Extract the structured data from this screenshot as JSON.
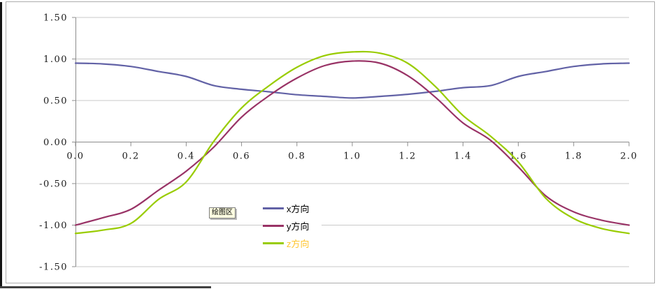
{
  "chart_data": {
    "type": "line",
    "title": "",
    "xlabel": "",
    "ylabel": "",
    "xlim": [
      0.0,
      2.0
    ],
    "ylim": [
      -1.5,
      1.5
    ],
    "grid": true,
    "legend_position": "center",
    "x_ticks": [
      "0.0",
      "0.2",
      "0.4",
      "0.6",
      "0.8",
      "1.0",
      "1.2",
      "1.4",
      "1.6",
      "1.8",
      "2.0"
    ],
    "y_ticks": [
      "1.50",
      "1.00",
      "0.50",
      "0.00",
      "-0.50",
      "-1.00",
      "-1.50"
    ],
    "x": [
      0.0,
      0.1,
      0.2,
      0.3,
      0.4,
      0.5,
      0.6,
      0.7,
      0.8,
      0.9,
      1.0,
      1.1,
      1.2,
      1.3,
      1.4,
      1.5,
      1.6,
      1.7,
      1.8,
      1.9,
      2.0
    ],
    "series": [
      {
        "name": "x方向",
        "color": "#6262A6",
        "label_color": "#000000",
        "values": [
          0.95,
          0.94,
          0.91,
          0.85,
          0.79,
          0.68,
          0.635,
          0.605,
          0.57,
          0.55,
          0.53,
          0.55,
          0.575,
          0.61,
          0.655,
          0.68,
          0.79,
          0.85,
          0.91,
          0.94,
          0.95
        ]
      },
      {
        "name": "y方向",
        "color": "#993366",
        "label_color": "#000000",
        "values": [
          -1.0,
          -0.91,
          -0.81,
          -0.58,
          -0.35,
          -0.06,
          0.3,
          0.56,
          0.77,
          0.92,
          0.975,
          0.95,
          0.8,
          0.54,
          0.23,
          0.02,
          -0.3,
          -0.65,
          -0.84,
          -0.94,
          -1.0
        ]
      },
      {
        "name": "z方向",
        "color": "#99CC00",
        "label_color": "#FFC52E",
        "values": [
          -1.1,
          -1.06,
          -0.98,
          -0.69,
          -0.48,
          0.01,
          0.41,
          0.68,
          0.9,
          1.04,
          1.085,
          1.07,
          0.95,
          0.67,
          0.32,
          0.07,
          -0.24,
          -0.68,
          -0.92,
          -1.04,
          -1.1
        ]
      }
    ]
  },
  "tooltip": {
    "label": "绘图区"
  },
  "colors": {
    "gridline": "#C9C9C9",
    "axis": "#8C8C8C",
    "frame": "#ACACAC",
    "tooltip_bg": "#FFFFE1",
    "label_text": "#1a1a1a"
  }
}
